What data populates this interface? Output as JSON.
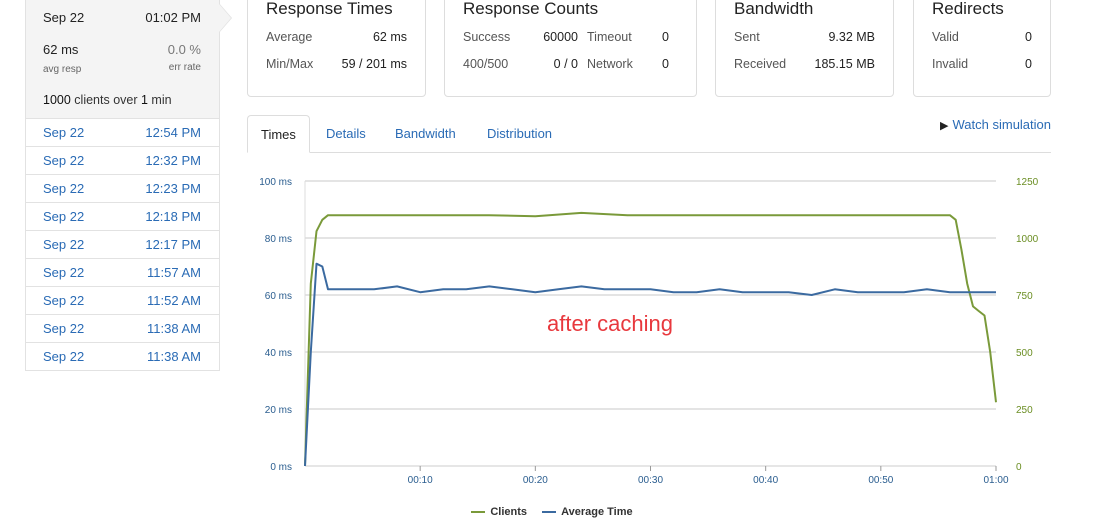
{
  "sidebar": {
    "selected": {
      "date": "Sep 22",
      "time": "01:02 PM",
      "avg_resp_value": "62 ms",
      "avg_resp_label": "avg resp",
      "err_rate_value": "0.0 %",
      "err_rate_label": "err rate",
      "clients_prefix": "1000",
      "clients_mid": " clients over ",
      "clients_dur": "1",
      "clients_suffix": " min"
    },
    "runs": [
      {
        "date": "Sep 22",
        "time": "12:54 PM"
      },
      {
        "date": "Sep 22",
        "time": "12:32 PM"
      },
      {
        "date": "Sep 22",
        "time": "12:23 PM"
      },
      {
        "date": "Sep 22",
        "time": "12:18 PM"
      },
      {
        "date": "Sep 22",
        "time": "12:17 PM"
      },
      {
        "date": "Sep 22",
        "time": "11:57 AM"
      },
      {
        "date": "Sep 22",
        "time": "11:52 AM"
      },
      {
        "date": "Sep 22",
        "time": "11:38 AM"
      },
      {
        "date": "Sep 22",
        "time": "11:38 AM"
      }
    ]
  },
  "panels": {
    "response_times": {
      "title": "Response Times",
      "avg_label": "Average",
      "avg_value": "62 ms",
      "minmax_label": "Min/Max",
      "minmax_value": "59 / 201 ms"
    },
    "response_counts": {
      "title": "Response Counts",
      "success_label": "Success",
      "success_value": "60000",
      "timeout_label": "Timeout",
      "timeout_value": "0",
      "err_label": "400/500",
      "err_value": "0 / 0",
      "network_label": "Network",
      "network_value": "0"
    },
    "bandwidth": {
      "title": "Bandwidth",
      "sent_label": "Sent",
      "sent_value": "9.32 MB",
      "recv_label": "Received",
      "recv_value": "185.15 MB"
    },
    "redirects": {
      "title": "Redirects",
      "valid_label": "Valid",
      "valid_value": "0",
      "invalid_label": "Invalid",
      "invalid_value": "0"
    }
  },
  "tabs": [
    "Times",
    "Details",
    "Bandwidth",
    "Distribution"
  ],
  "watch_label": "Watch simulation",
  "annotation": "after caching",
  "colors": {
    "clients": "#7a9a3a",
    "avg_time": "#3b6aa0",
    "link": "#2a6bb5",
    "annotation": "#e8383d"
  },
  "chart_data": {
    "type": "line",
    "x_ticks": [
      "00:10",
      "00:20",
      "00:30",
      "00:40",
      "00:50",
      "01:00"
    ],
    "y_left_ticks": [
      "0 ms",
      "20 ms",
      "40 ms",
      "60 ms",
      "80 ms",
      "100 ms"
    ],
    "y_right_ticks": [
      "0",
      "250",
      "500",
      "750",
      "1000",
      "1250"
    ],
    "ylim_left": [
      0,
      100
    ],
    "ylim_right": [
      0,
      1250
    ],
    "xlim": [
      0,
      60
    ],
    "grid": true,
    "legend_position": "bottom",
    "series": [
      {
        "name": "Clients",
        "axis": "right",
        "x": [
          0,
          0.5,
          1,
          1.5,
          2,
          4,
          8,
          12,
          16,
          20,
          24,
          28,
          32,
          36,
          40,
          44,
          48,
          52,
          54,
          56,
          56.5,
          57,
          57.5,
          58,
          58.5,
          59,
          59.5,
          60
        ],
        "values": [
          0,
          800,
          1030,
          1080,
          1100,
          1100,
          1100,
          1100,
          1100,
          1095,
          1110,
          1100,
          1100,
          1100,
          1100,
          1100,
          1100,
          1100,
          1100,
          1100,
          1080,
          950,
          800,
          700,
          680,
          660,
          500,
          280
        ]
      },
      {
        "name": "Average Time",
        "axis": "left",
        "x": [
          0,
          0.5,
          1,
          1.5,
          2,
          4,
          6,
          8,
          10,
          12,
          14,
          16,
          18,
          20,
          22,
          24,
          26,
          28,
          30,
          32,
          34,
          36,
          38,
          40,
          42,
          44,
          46,
          48,
          50,
          52,
          54,
          56,
          58,
          60
        ],
        "values": [
          0,
          40,
          71,
          70,
          62,
          62,
          62,
          63,
          61,
          62,
          62,
          63,
          62,
          61,
          62,
          63,
          62,
          62,
          62,
          61,
          61,
          62,
          61,
          61,
          61,
          60,
          62,
          61,
          61,
          61,
          62,
          61,
          61,
          61
        ]
      }
    ]
  }
}
